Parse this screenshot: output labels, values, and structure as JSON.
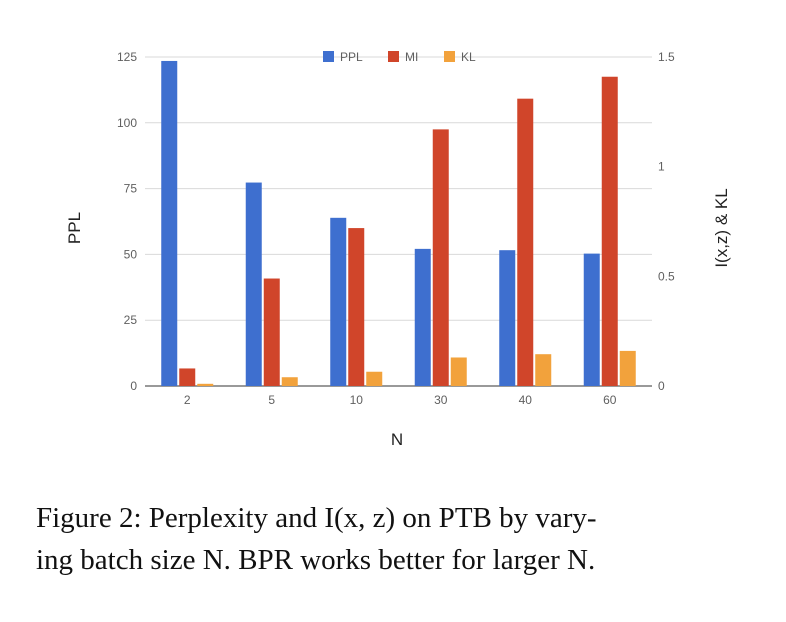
{
  "chart_data": {
    "type": "bar",
    "categories": [
      "2",
      "5",
      "10",
      "30",
      "40",
      "60"
    ],
    "xlabel": "N",
    "ylabel_left": "PPL",
    "ylabel_right": "I(x,z) & KL",
    "y_left": {
      "min": 0,
      "max": 125,
      "ticks": [
        "0",
        "25",
        "50",
        "75",
        "100",
        "125"
      ]
    },
    "y_right": {
      "min": 0,
      "max": 1.5,
      "ticks": [
        "0",
        "0.5",
        "1",
        "1.5"
      ]
    },
    "grid": true,
    "legend_position": "top-center",
    "series": [
      {
        "name": "PPL",
        "axis": "left",
        "color": "#3e6fcf",
        "values": [
          123.5,
          77.3,
          63.9,
          52.1,
          51.6,
          50.3
        ]
      },
      {
        "name": "MI",
        "axis": "right",
        "color": "#d0452a",
        "values": [
          0.08,
          0.49,
          0.72,
          1.17,
          1.31,
          1.41
        ]
      },
      {
        "name": "KL",
        "axis": "right",
        "color": "#f2a23c",
        "values": [
          0.01,
          0.04,
          0.065,
          0.13,
          0.145,
          0.16
        ]
      }
    ]
  },
  "caption": {
    "line1": "Figure 2: Perplexity and I(x, z) on PTB by vary-",
    "line2": "ing batch size N. BPR works better for larger N."
  }
}
